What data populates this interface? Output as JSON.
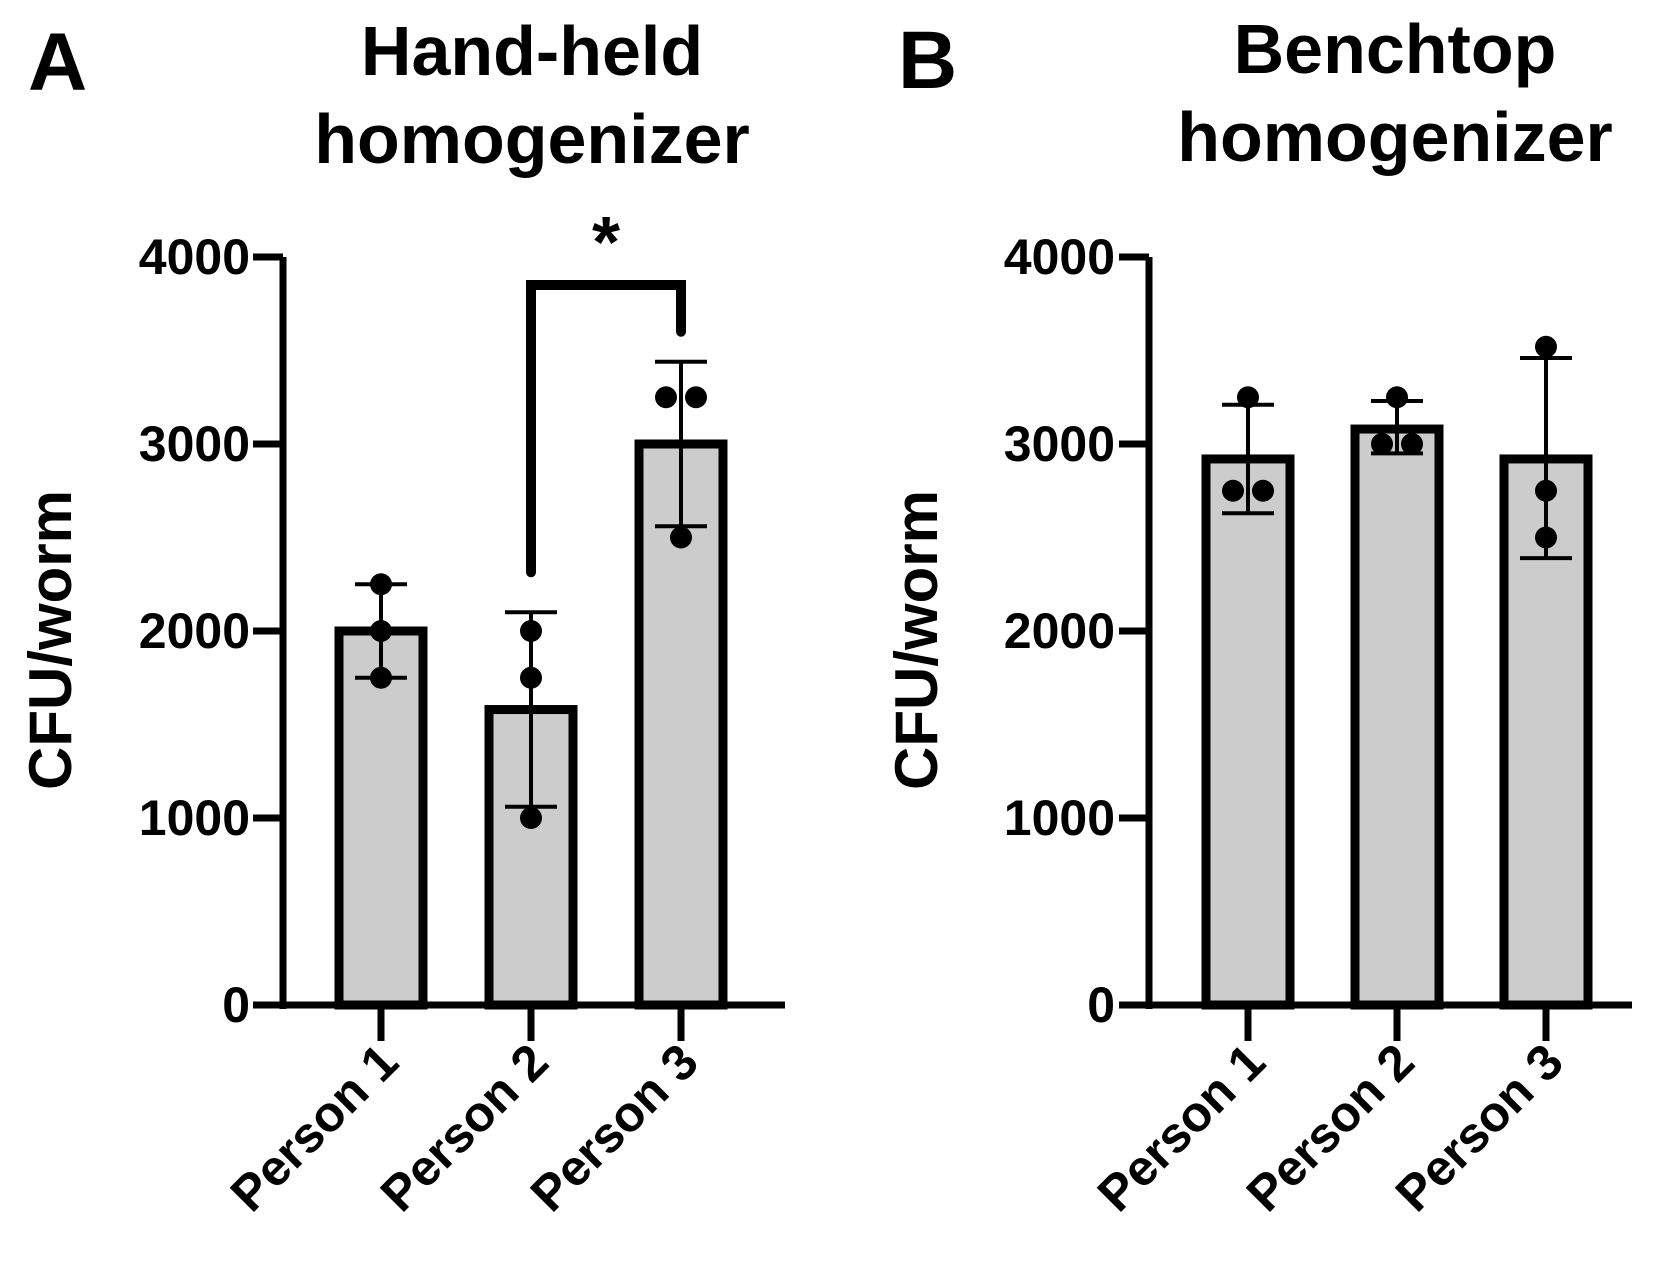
{
  "chart_data": [
    {
      "panel_label": "A",
      "type": "bar",
      "title": [
        "Hand-held",
        "homogenizer"
      ],
      "ylabel": "CFU/worm",
      "xlabel": "",
      "ylim": [
        0,
        4000
      ],
      "yticks": [
        0,
        1000,
        2000,
        3000,
        4000
      ],
      "categories": [
        "Person 1",
        "Person 2",
        "Person 3"
      ],
      "values": [
        2000,
        1580,
        3000
      ],
      "error_low": [
        1750,
        1060,
        2560
      ],
      "error_high": [
        2250,
        2100,
        3440
      ],
      "points": [
        [
          2250,
          2000,
          1750
        ],
        [
          2000,
          1750,
          1000
        ],
        [
          3250,
          3250,
          2500
        ]
      ],
      "bar_color": "#cccccc",
      "significance": [
        {
          "from": 1,
          "to": 2,
          "label": "*",
          "y": 3850
        }
      ]
    },
    {
      "panel_label": "B",
      "type": "bar",
      "title": [
        "Benchtop",
        "homogenizer"
      ],
      "ylabel": "CFU/worm",
      "xlabel": "",
      "ylim": [
        0,
        4000
      ],
      "yticks": [
        0,
        1000,
        2000,
        3000,
        4000
      ],
      "categories": [
        "Person 1",
        "Person 2",
        "Person 3"
      ],
      "values": [
        2920,
        3080,
        2920
      ],
      "error_low": [
        2630,
        2950,
        2390
      ],
      "error_high": [
        3210,
        3230,
        3460
      ],
      "points": [
        [
          3250,
          2750,
          2750
        ],
        [
          3250,
          3000,
          3000
        ],
        [
          3520,
          2750,
          2500
        ]
      ],
      "bar_color": "#cccccc",
      "significance": []
    }
  ]
}
